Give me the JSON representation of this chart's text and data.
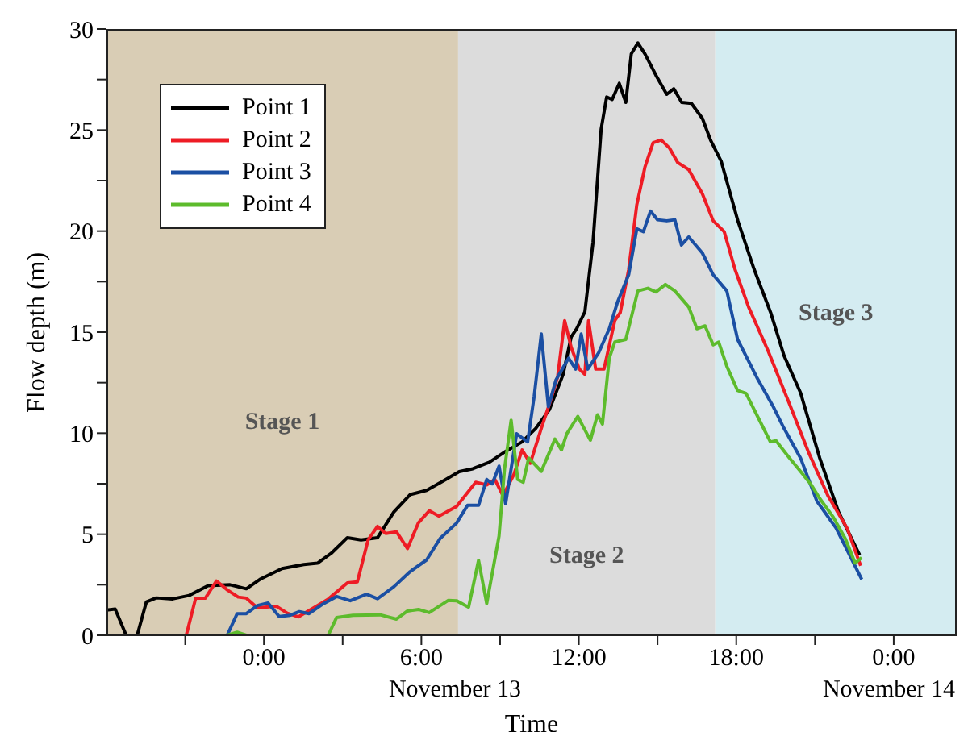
{
  "chart_data": {
    "type": "line",
    "xlabel": "Time",
    "ylabel": "Flow depth (m)",
    "xlim": [
      -6,
      26.4
    ],
    "ylim": [
      0,
      30
    ],
    "xticks": [
      {
        "value": -3,
        "label": null
      },
      {
        "value": 0,
        "label": "0:00"
      },
      {
        "value": 3,
        "label": null
      },
      {
        "value": 6,
        "label": "6:00"
      },
      {
        "value": 9,
        "label": null
      },
      {
        "value": 12,
        "label": "12:00"
      },
      {
        "value": 15,
        "label": null
      },
      {
        "value": 18,
        "label": "18:00"
      },
      {
        "value": 21,
        "label": null
      },
      {
        "value": 24,
        "label": "0:00"
      }
    ],
    "yticks": [
      0,
      {
        "value": 2.5,
        "label": null
      },
      5,
      {
        "value": 7.5,
        "label": null
      },
      10,
      {
        "value": 12.5,
        "label": null
      },
      15,
      {
        "value": 17.5,
        "label": null
      },
      20,
      {
        "value": 22.5,
        "label": null
      },
      25,
      {
        "value": 27.5,
        "label": null
      },
      30
    ],
    "grid": false,
    "legend": "top left",
    "marker": "none",
    "line_style": "solid",
    "bands": [
      {
        "axis": "x",
        "from": -6,
        "to": 7.4,
        "label": "Stage 1",
        "color": "#d9cdb5"
      },
      {
        "axis": "x",
        "from": 7.4,
        "to": 17.2,
        "label": "Stage 2",
        "color": "#dcdcdc"
      },
      {
        "axis": "x",
        "from": 17.2,
        "to": 26.4,
        "label": "Stage 3",
        "color": "#d4ecf1"
      }
    ],
    "annotations": [
      "November 13",
      "November 14"
    ],
    "series": [
      {
        "name": "Point 1",
        "color": "#000000",
        "x": [
          -6,
          -5.67,
          -5.25,
          -4.83,
          -4.48,
          -4.1,
          -3.48,
          -2.85,
          -2.13,
          -1.29,
          -0.67,
          -0.15,
          0.69,
          1.52,
          2.04,
          2.56,
          3.18,
          3.7,
          4.33,
          4.95,
          5.57,
          6.2,
          6.92,
          7.44,
          7.96,
          8.59,
          9.21,
          9.84,
          10.36,
          10.88,
          11.4,
          11.71,
          11.92,
          12.23,
          12.54,
          12.85,
          13.06,
          13.27,
          13.54,
          13.79,
          14.0,
          14.25,
          14.52,
          14.94,
          15.35,
          15.62,
          15.92,
          16.29,
          16.71,
          17.02,
          17.43,
          18.06,
          18.68,
          19.31,
          19.82,
          20.45,
          21.18,
          21.9,
          22.7
        ],
        "values": [
          1.25,
          1.3,
          0,
          0,
          1.65,
          1.85,
          1.8,
          1.97,
          2.45,
          2.5,
          2.3,
          2.77,
          3.3,
          3.5,
          3.57,
          4.05,
          4.83,
          4.72,
          4.83,
          6.1,
          6.96,
          7.17,
          7.7,
          8.1,
          8.24,
          8.56,
          9.1,
          9.57,
          10.24,
          11.17,
          12.9,
          14.77,
          15.17,
          16.0,
          19.44,
          25.04,
          26.64,
          26.51,
          27.31,
          26.37,
          28.77,
          29.31,
          28.77,
          27.71,
          26.77,
          27.04,
          26.37,
          26.32,
          25.57,
          24.5,
          23.44,
          20.51,
          18.11,
          15.97,
          13.84,
          12.0,
          8.77,
          6.1,
          3.97
        ]
      },
      {
        "name": "Point 2",
        "color": "#ee1c25",
        "x": [
          -6,
          -2.96,
          -2.6,
          -2.23,
          -1.81,
          -1.39,
          -0.98,
          -0.67,
          -0.25,
          0.47,
          0.89,
          1.31,
          1.83,
          2.45,
          3.18,
          3.56,
          3.97,
          4.33,
          4.64,
          5.05,
          5.47,
          5.89,
          6.3,
          6.67,
          7.34,
          8.07,
          8.49,
          8.8,
          9.11,
          9.53,
          9.84,
          10.15,
          10.57,
          10.88,
          11.19,
          11.46,
          11.71,
          12.02,
          12.23,
          12.37,
          12.64,
          12.96,
          13.37,
          13.58,
          13.9,
          14.21,
          14.52,
          14.83,
          15.14,
          15.46,
          15.77,
          16.19,
          16.71,
          17.12,
          17.54,
          17.95,
          18.47,
          19.2,
          20.03,
          20.76,
          21.49,
          22.22,
          22.74
        ],
        "values": [
          0,
          0,
          1.84,
          1.84,
          2.69,
          2.24,
          1.89,
          1.84,
          1.36,
          1.44,
          1.09,
          0.91,
          1.31,
          1.79,
          2.59,
          2.64,
          4.72,
          5.39,
          5.04,
          5.12,
          4.29,
          5.57,
          6.16,
          5.89,
          6.37,
          7.57,
          7.44,
          7.71,
          6.91,
          7.97,
          9.17,
          8.51,
          10.24,
          11.44,
          12.77,
          15.57,
          14.24,
          13.17,
          12.91,
          15.57,
          13.17,
          13.17,
          15.57,
          15.97,
          18.1,
          21.31,
          23.17,
          24.37,
          24.51,
          24.1,
          23.39,
          23.04,
          21.84,
          20.51,
          19.97,
          18.11,
          16.24,
          14.11,
          11.44,
          9.04,
          6.91,
          5.31,
          3.44
        ]
      },
      {
        "name": "Point 3",
        "color": "#1b4fa3",
        "x": [
          -6,
          -1.4,
          -1.02,
          -0.67,
          -0.25,
          0.16,
          0.58,
          1.0,
          1.35,
          1.72,
          2.25,
          2.77,
          3.29,
          3.91,
          4.33,
          4.95,
          5.57,
          6.2,
          6.72,
          7.34,
          7.76,
          8.18,
          8.49,
          8.7,
          8.96,
          9.21,
          9.63,
          10.05,
          10.3,
          10.57,
          10.84,
          11.13,
          11.61,
          11.88,
          12.09,
          12.34,
          12.75,
          13.16,
          13.48,
          13.9,
          14.21,
          14.46,
          14.73,
          15.0,
          15.35,
          15.66,
          15.91,
          16.19,
          16.71,
          17.12,
          17.64,
          18.05,
          18.78,
          19.41,
          19.82,
          20.45,
          21.07,
          21.8,
          22.32,
          22.78
        ],
        "values": [
          0,
          0,
          1.07,
          1.07,
          1.47,
          1.6,
          0.93,
          0.99,
          1.17,
          1.07,
          1.55,
          1.92,
          1.71,
          2.03,
          1.81,
          2.4,
          3.15,
          3.73,
          4.8,
          5.55,
          6.43,
          6.43,
          7.71,
          7.49,
          8.37,
          6.51,
          9.97,
          9.57,
          11.84,
          14.91,
          11.31,
          12.64,
          13.71,
          13.17,
          14.91,
          13.17,
          13.97,
          15.17,
          16.51,
          17.84,
          20.11,
          19.97,
          20.99,
          20.56,
          20.51,
          20.56,
          19.31,
          19.71,
          18.91,
          17.84,
          17.04,
          14.64,
          12.77,
          11.31,
          10.24,
          8.77,
          6.64,
          5.31,
          3.97,
          2.77
        ]
      },
      {
        "name": "Point 4",
        "color": "#5dbb2c",
        "x": [
          -6,
          -1.4,
          -1.02,
          -0.67,
          2.45,
          2.77,
          3.39,
          4.43,
          5.05,
          5.47,
          5.89,
          6.3,
          7.03,
          7.34,
          7.8,
          8.18,
          8.49,
          8.96,
          9.17,
          9.42,
          9.67,
          9.88,
          10.09,
          10.57,
          11.09,
          11.34,
          11.54,
          11.96,
          12.44,
          12.71,
          12.9,
          13.16,
          13.37,
          13.79,
          14.25,
          14.63,
          14.94,
          15.3,
          15.66,
          16.19,
          16.5,
          16.81,
          17.12,
          17.33,
          17.64,
          18.05,
          18.37,
          18.78,
          19.3,
          19.51,
          20.03,
          20.45,
          20.86,
          21.18,
          21.7,
          22.16,
          22.53,
          22.78
        ],
        "values": [
          0,
          0,
          0.15,
          0,
          0,
          0.88,
          0.99,
          1.01,
          0.8,
          1.2,
          1.28,
          1.12,
          1.73,
          1.71,
          1.39,
          3.71,
          1.57,
          4.91,
          8.24,
          10.64,
          7.71,
          7.57,
          8.77,
          8.11,
          9.71,
          9.17,
          9.97,
          10.83,
          9.65,
          10.91,
          10.45,
          13.71,
          14.51,
          14.64,
          17.04,
          17.17,
          16.99,
          17.36,
          17.04,
          16.24,
          15.17,
          15.31,
          14.37,
          14.51,
          13.31,
          12.11,
          11.97,
          10.91,
          9.57,
          9.63,
          8.77,
          8.11,
          7.44,
          6.77,
          5.84,
          4.77,
          3.57,
          3.84
        ]
      }
    ]
  }
}
